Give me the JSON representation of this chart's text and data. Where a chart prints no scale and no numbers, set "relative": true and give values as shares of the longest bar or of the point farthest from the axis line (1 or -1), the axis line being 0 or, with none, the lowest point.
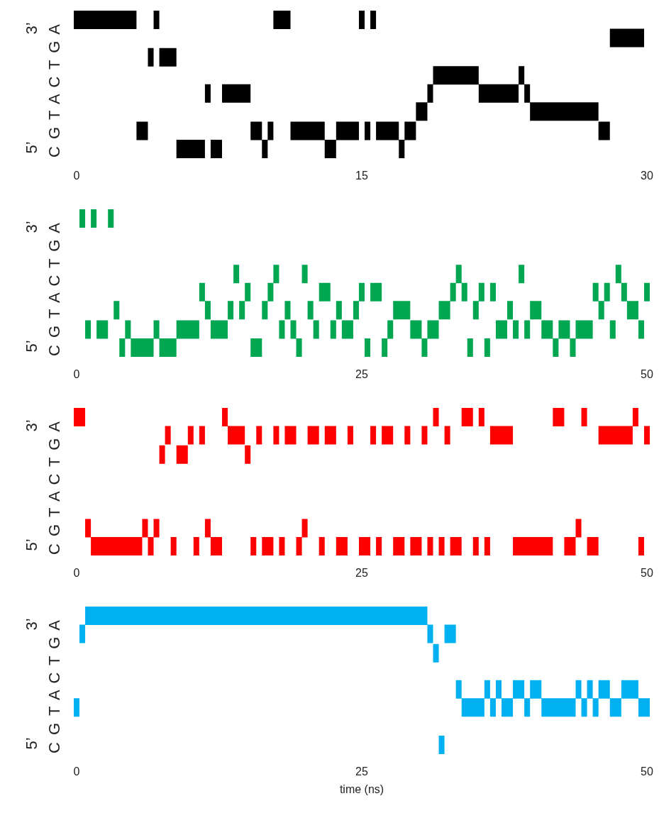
{
  "chart_data": [
    {
      "type": "step",
      "color": "#000000",
      "xlim": [
        0,
        30
      ],
      "xticks": [
        0,
        15,
        30
      ],
      "relative": true,
      "ylabel": "C G T A C T G A",
      "annotations": [
        "5’",
        "3’"
      ],
      "x": [
        0,
        0.3,
        0.6,
        0.9,
        1.2,
        1.5,
        1.8,
        2.1,
        2.4,
        2.7,
        3,
        3.3,
        3.6,
        3.9,
        4.2,
        4.5,
        4.8,
        5.1,
        5.4,
        5.7,
        6,
        6.3,
        6.6,
        6.9,
        7.2,
        7.5,
        7.8,
        8.1,
        8.4,
        8.7,
        9,
        9.3,
        9.6,
        9.9,
        10.2,
        10.5,
        10.8,
        11.1,
        11.4,
        11.7,
        12,
        12.3,
        12.6,
        12.9,
        13.2,
        13.5,
        13.8,
        14.1,
        14.4,
        14.7,
        15,
        15.3,
        15.6,
        15.9,
        16.2,
        16.5,
        16.8,
        17.1,
        17.4,
        17.7,
        18,
        18.3,
        18.6,
        18.9,
        19.2,
        19.5,
        19.8,
        20.1,
        20.4,
        20.7,
        21,
        21.3,
        21.6,
        21.9,
        22.2,
        22.5,
        22.8,
        23.1,
        23.4,
        23.7,
        24,
        24.3,
        24.6,
        24.9,
        25.2,
        25.5,
        25.8,
        26.1,
        26.4,
        26.7,
        27,
        27.3,
        27.6,
        27.9,
        28.2,
        28.5,
        28.8,
        29.1,
        29.4,
        29.7
      ],
      "values": [
        1,
        1,
        1,
        1,
        1,
        1,
        1,
        1,
        1,
        1,
        1,
        0.14,
        0.14,
        0.71,
        1,
        0.71,
        0.71,
        0.71,
        0,
        0,
        0,
        0,
        0,
        0.43,
        0,
        0,
        0.43,
        0.43,
        0.43,
        0.43,
        0.43,
        0.14,
        0.14,
        0,
        0.14,
        1,
        1,
        1,
        0.14,
        0.14,
        0.14,
        0.14,
        0.14,
        0.14,
        0,
        0,
        0.14,
        0.14,
        0.14,
        0.14,
        1,
        0.14,
        1,
        0.14,
        0.14,
        0.14,
        0.14,
        0,
        0.14,
        0.14,
        0.29,
        0.29,
        0.43,
        0.57,
        0.57,
        0.57,
        0.57,
        0.57,
        0.57,
        0.57,
        0.57,
        0.43,
        0.43,
        0.43,
        0.43,
        0.43,
        0.43,
        0.43,
        0.57,
        0.43,
        0.29,
        0.29,
        0.29,
        0.29,
        0.29,
        0.29,
        0.29,
        0.29,
        0.29,
        0.29,
        0.29,
        0.29,
        0.14,
        0.14,
        0.86,
        0.86,
        0.86,
        0.86,
        0.86,
        0.86
      ]
    },
    {
      "type": "step",
      "color": "#00a650",
      "xlim": [
        0,
        50
      ],
      "xticks": [
        0,
        25,
        50
      ],
      "relative": true,
      "ylabel": "C G T A C T G A",
      "annotations": [
        "5’",
        "3’"
      ],
      "x": [
        0.5,
        1,
        1.5,
        2,
        2.5,
        3,
        3.5,
        4,
        4.5,
        5,
        5.5,
        6,
        6.5,
        7,
        7.5,
        8,
        8.5,
        9,
        9.5,
        10,
        10.5,
        11,
        11.5,
        12,
        12.5,
        13,
        13.5,
        14,
        14.5,
        15,
        15.5,
        16,
        16.5,
        17,
        17.5,
        18,
        18.5,
        19,
        19.5,
        20,
        20.5,
        21,
        21.5,
        22,
        22.5,
        23,
        23.5,
        24,
        24.5,
        25,
        25.5,
        26,
        26.5,
        27,
        27.5,
        28,
        28.5,
        29,
        29.5,
        30,
        30.5,
        31,
        31.5,
        32,
        32.5,
        33,
        33.5,
        34,
        34.5,
        35,
        35.5,
        36,
        36.5,
        37,
        37.5,
        38,
        38.5,
        39,
        39.5,
        40,
        40.5,
        41,
        41.5,
        42,
        42.5,
        43,
        43.5,
        44,
        44.5,
        45,
        45.5,
        46,
        46.5,
        47,
        47.5,
        48,
        48.5,
        49,
        49.5,
        50
      ],
      "values": [
        1,
        0.14,
        1,
        0.14,
        0.14,
        1,
        0.29,
        0,
        0.14,
        0,
        0,
        0,
        0,
        0.14,
        0,
        0,
        0,
        0.14,
        0.14,
        0.14,
        0.14,
        0.43,
        0.29,
        0.14,
        0.14,
        0.14,
        0.29,
        0.57,
        0.29,
        0.43,
        0,
        0,
        0.29,
        0.43,
        0.57,
        0.14,
        0.29,
        0.14,
        0,
        0.57,
        0.29,
        0.14,
        0.43,
        0.43,
        0.14,
        0.29,
        0.14,
        0.14,
        0.29,
        0.43,
        0,
        0.43,
        0.43,
        0,
        0.14,
        0.29,
        0.29,
        0.29,
        0.14,
        0.14,
        0,
        0.14,
        0.14,
        0.29,
        0.29,
        0.43,
        0.57,
        0.43,
        0,
        0.29,
        0.43,
        0,
        0.43,
        0.14,
        0.14,
        0.29,
        0.14,
        0.57,
        0.14,
        0.29,
        0.29,
        0.14,
        0.14,
        0,
        0.14,
        0.14,
        0,
        0.14,
        0.14,
        0.14,
        0.43,
        0.29,
        0.43,
        0.14,
        0.57,
        0.43,
        0.29,
        0.29,
        0.14,
        0.43
      ]
    },
    {
      "type": "step",
      "color": "#ff0000",
      "xlim": [
        0,
        50
      ],
      "xticks": [
        0,
        25,
        50
      ],
      "relative": true,
      "ylabel": "C G T A C T G A",
      "annotations": [
        "5’",
        "3’"
      ],
      "x": [
        0,
        0.5,
        1,
        1.5,
        2,
        2.5,
        3,
        3.5,
        4,
        4.5,
        5,
        5.5,
        6,
        6.5,
        7,
        7.5,
        8,
        8.5,
        9,
        9.5,
        10,
        10.5,
        11,
        11.5,
        12,
        12.5,
        13,
        13.5,
        14,
        14.5,
        15,
        15.5,
        16,
        16.5,
        17,
        17.5,
        18,
        18.5,
        19,
        19.5,
        20,
        20.5,
        21,
        21.5,
        22,
        22.5,
        23,
        23.5,
        24,
        24.5,
        25,
        25.5,
        26,
        26.5,
        27,
        27.5,
        28,
        28.5,
        29,
        29.5,
        30,
        30.5,
        31,
        31.5,
        32,
        32.5,
        33,
        33.5,
        34,
        34.5,
        35,
        35.5,
        36,
        36.5,
        37,
        37.5,
        38,
        38.5,
        39,
        39.5,
        40,
        40.5,
        41,
        41.5,
        42,
        42.5,
        43,
        43.5,
        44,
        44.5,
        45,
        45.5,
        46,
        46.5,
        47,
        47.5,
        48,
        48.5,
        49,
        49.5,
        50
      ],
      "values": [
        1,
        1,
        0.14,
        0,
        0,
        0,
        0,
        0,
        0,
        0,
        0,
        0,
        0.14,
        0,
        0.14,
        0.71,
        0.86,
        0,
        0.71,
        0.71,
        0.86,
        0,
        0.86,
        0.14,
        0,
        0,
        1,
        0.86,
        0.86,
        0.86,
        0.71,
        0,
        0.86,
        0,
        0,
        0.86,
        0,
        0.86,
        0.86,
        0,
        0.14,
        0.86,
        0.86,
        0,
        0.86,
        0.86,
        0,
        0,
        0.86,
        null,
        0,
        0,
        0.86,
        0,
        0.86,
        0.86,
        0,
        0,
        0.86,
        0,
        0,
        0.86,
        0,
        1,
        0,
        0.86,
        0,
        0,
        1,
        1,
        0,
        1,
        0,
        0.86,
        0.86,
        0.86,
        0.86,
        0,
        0,
        0,
        0,
        0,
        0,
        0,
        1,
        1,
        0,
        0,
        0.14,
        1,
        0,
        0,
        0.86,
        0.86,
        0.86,
        0.86,
        0.86,
        0.86,
        1,
        0,
        0.86
      ]
    },
    {
      "type": "step",
      "color": "#00b0f0",
      "xlim": [
        0,
        50
      ],
      "xticks": [
        0,
        25,
        50
      ],
      "relative": true,
      "ylabel": "C G T A C T G A",
      "annotations": [
        "5’",
        "3’"
      ],
      "xlabel": "time (ns)",
      "x": [
        0,
        0.5,
        1,
        1.5,
        2,
        2.5,
        3,
        3.5,
        4,
        4.5,
        5,
        5.5,
        6,
        6.5,
        7,
        7.5,
        8,
        8.5,
        9,
        9.5,
        10,
        10.5,
        11,
        11.5,
        12,
        12.5,
        13,
        13.5,
        14,
        14.5,
        15,
        15.5,
        16,
        16.5,
        17,
        17.5,
        18,
        18.5,
        19,
        19.5,
        20,
        20.5,
        21,
        21.5,
        22,
        22.5,
        23,
        23.5,
        24,
        24.5,
        25,
        25.5,
        26,
        26.5,
        27,
        27.5,
        28,
        28.5,
        29,
        29.5,
        30,
        30.5,
        31,
        31.5,
        32,
        32.5,
        33,
        33.5,
        34,
        34.5,
        35,
        35.5,
        36,
        36.5,
        37,
        37.5,
        38,
        38.5,
        39,
        39.5,
        40,
        40.5,
        41,
        41.5,
        42,
        42.5,
        43,
        43.5,
        44,
        44.5,
        45,
        45.5,
        46,
        46.5,
        47,
        47.5,
        48,
        48.5,
        49,
        49.5,
        50
      ],
      "values": [
        0.29,
        0.86,
        1,
        1,
        1,
        1,
        1,
        1,
        1,
        1,
        1,
        1,
        1,
        1,
        1,
        1,
        1,
        1,
        1,
        1,
        1,
        1,
        1,
        1,
        1,
        1,
        1,
        1,
        1,
        1,
        1,
        1,
        1,
        1,
        1,
        1,
        1,
        1,
        1,
        1,
        1,
        1,
        1,
        1,
        1,
        1,
        1,
        1,
        1,
        1,
        1,
        1,
        1,
        1,
        1,
        1,
        1,
        1,
        1,
        1,
        1,
        1,
        0.86,
        0.71,
        0,
        0.86,
        0.86,
        0.43,
        0.29,
        0.29,
        0.29,
        0.29,
        0.43,
        0.29,
        0.43,
        0.29,
        0.29,
        0.43,
        0.43,
        0.29,
        0.43,
        0.43,
        0.29,
        0.29,
        0.29,
        0.29,
        0.29,
        0.29,
        0.43,
        0.29,
        0.43,
        0.29,
        0.43,
        0.43,
        0.29,
        0.29,
        0.43,
        0.43,
        0.43,
        0.29,
        0.29
      ]
    }
  ]
}
